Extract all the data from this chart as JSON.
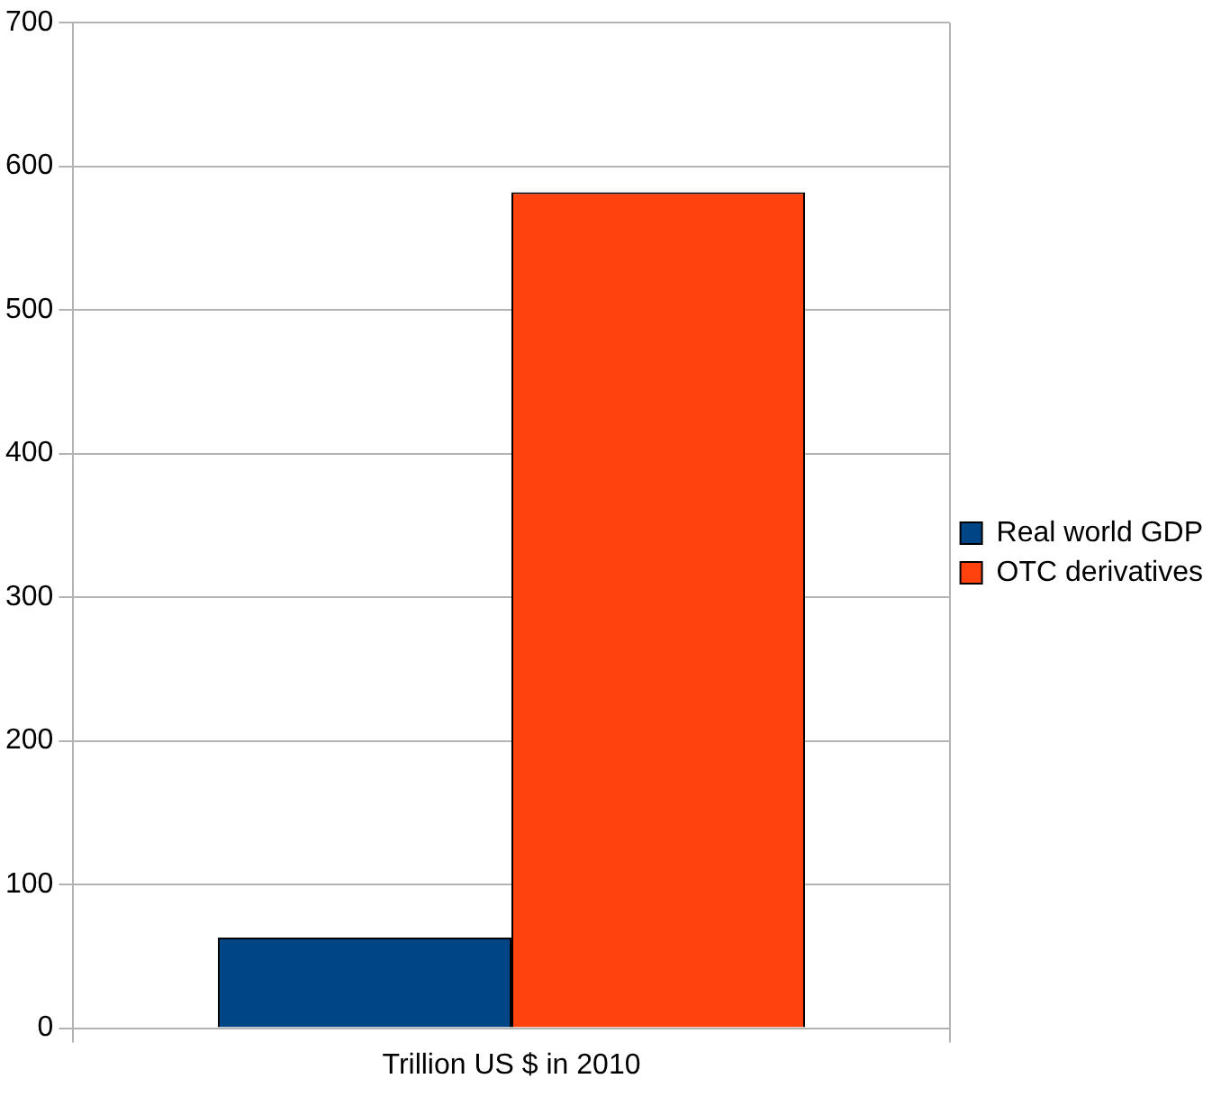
{
  "chart_data": {
    "type": "bar",
    "categories": [
      "Trillion US $ in 2010"
    ],
    "series": [
      {
        "name": "Real world GDP",
        "color": "#004586",
        "values": [
          63
        ]
      },
      {
        "name": "OTC derivatives",
        "color": "#ff420e",
        "values": [
          582
        ]
      }
    ],
    "ylim": [
      0,
      700
    ],
    "yticks": [
      0,
      100,
      200,
      300,
      400,
      500,
      600,
      700
    ],
    "grid": true,
    "legend": "right"
  }
}
